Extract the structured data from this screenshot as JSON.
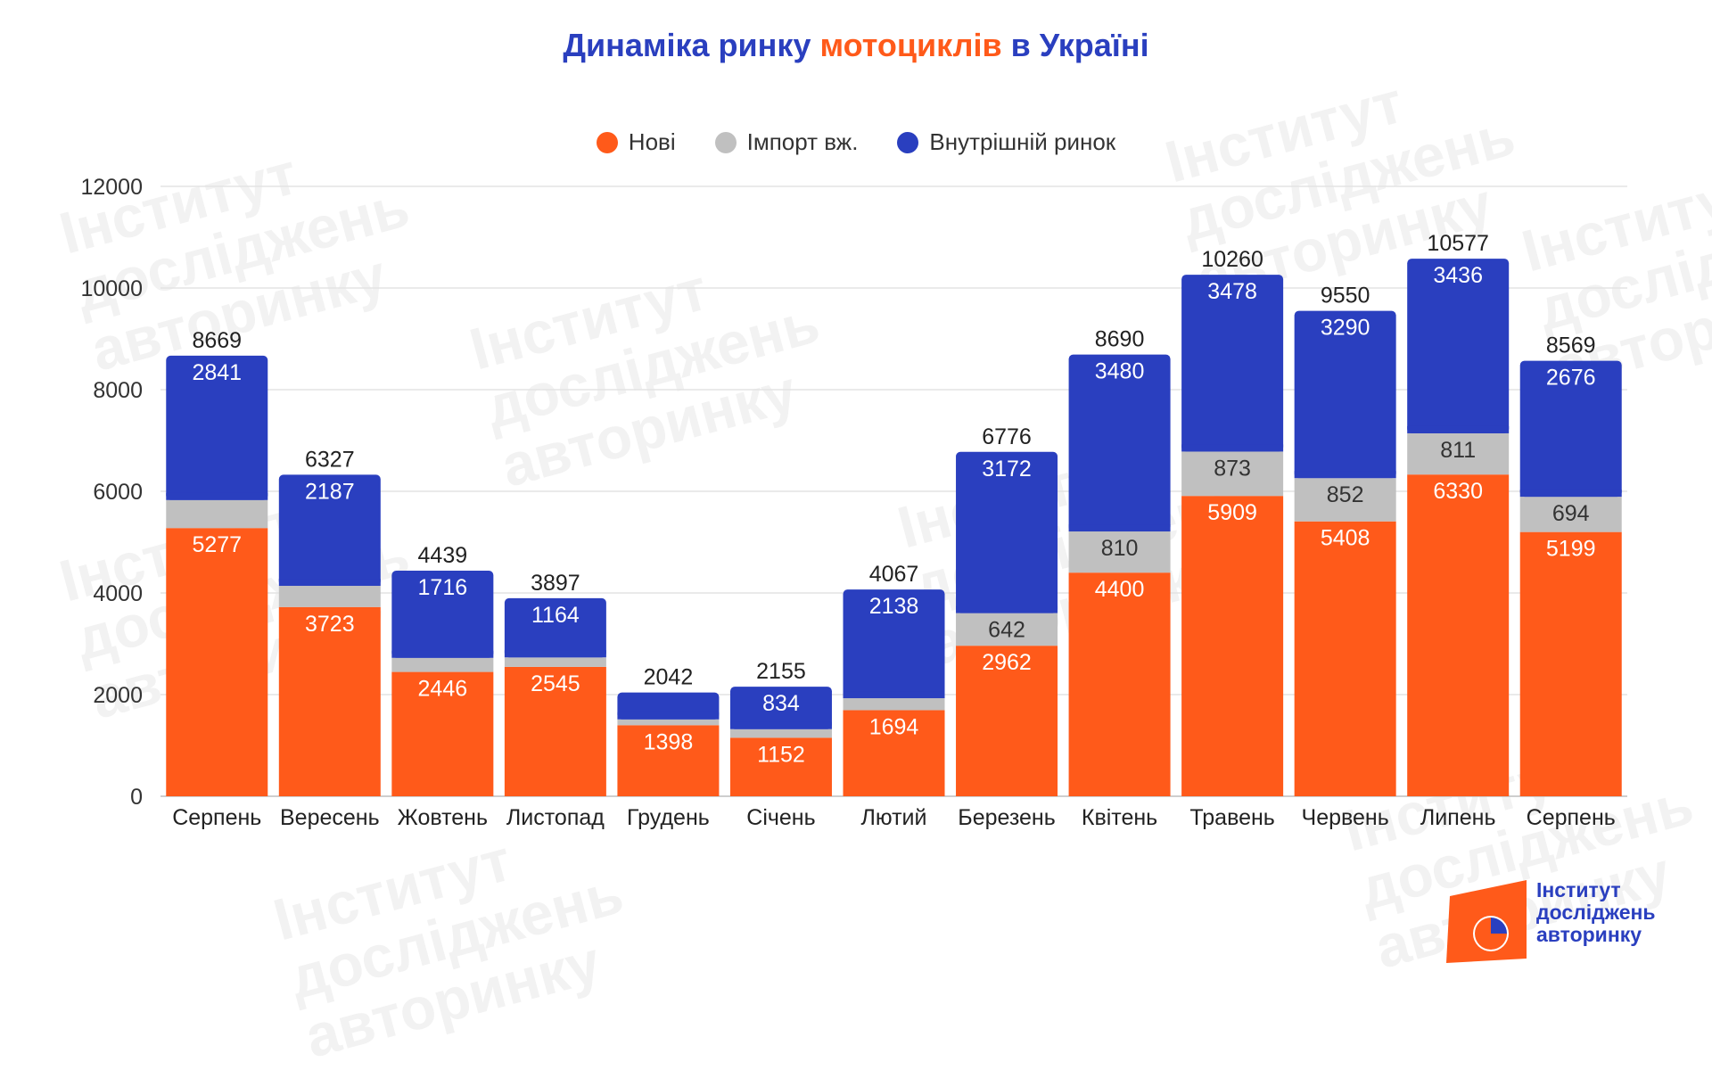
{
  "title": {
    "part1": "Динаміка ринку ",
    "highlight": "мотоциклів",
    "part2": " в Україні"
  },
  "colors": {
    "new": "#ff5a1a",
    "import": "#c0c0c0",
    "domestic": "#2a3fbf",
    "title": "#2a3fbf",
    "highlight": "#ff5a1a"
  },
  "legend": [
    {
      "label": "Нові",
      "color": "#ff5a1a"
    },
    {
      "label": "Імпорт вж.",
      "color": "#c0c0c0"
    },
    {
      "label": "Внутрішній ринок",
      "color": "#2a3fbf"
    }
  ],
  "logo": {
    "line1": "Інститут",
    "line2": "досліджень",
    "line3": "авторинку"
  },
  "chart_data": {
    "type": "bar",
    "stacked": true,
    "ylim": [
      0,
      12000
    ],
    "yticks": [
      0,
      2000,
      4000,
      6000,
      8000,
      10000,
      12000
    ],
    "grid": true,
    "legend_position": "top",
    "categories": [
      "Серпень",
      "Вересень",
      "Жовтень",
      "Листопад",
      "Грудень",
      "Січень",
      "Лютий",
      "Березень",
      "Квітень",
      "Травень",
      "Червень",
      "Липень",
      "Серпень"
    ],
    "series": [
      {
        "name": "Нові",
        "values": [
          5277,
          3723,
          2446,
          2545,
          1398,
          1152,
          1694,
          2962,
          4400,
          5909,
          5408,
          6330,
          5199
        ]
      },
      {
        "name": "Імпорт вж.",
        "values": [
          551,
          417,
          277,
          188,
          115,
          169,
          235,
          642,
          810,
          873,
          852,
          811,
          694
        ]
      },
      {
        "name": "Внутрішній ринок",
        "values": [
          2841,
          2187,
          1716,
          1164,
          529,
          834,
          2138,
          3172,
          3480,
          3478,
          3290,
          3436,
          2676
        ]
      }
    ],
    "segment_labels": [
      [
        "5277",
        "3723",
        "2446",
        "2545",
        "1398",
        "1152",
        "1694",
        "2962",
        "4400",
        "5909",
        "5408",
        "6330",
        "5199"
      ],
      [
        "",
        "",
        "",
        "",
        "",
        "",
        "",
        "642",
        "810",
        "873",
        "852",
        "811",
        "694"
      ],
      [
        "2841",
        "2187",
        "1716",
        "1164",
        "",
        "834",
        "2138",
        "3172",
        "3480",
        "3478",
        "3290",
        "3436",
        "2676"
      ]
    ],
    "totals": [
      8669,
      6327,
      4439,
      3897,
      2042,
      2155,
      4067,
      6776,
      8690,
      10260,
      9550,
      10577,
      8569
    ]
  }
}
